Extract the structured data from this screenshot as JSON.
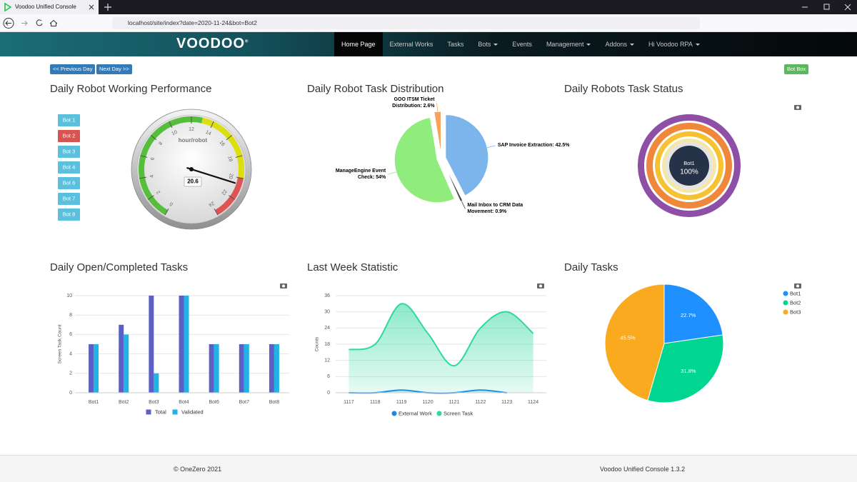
{
  "browser": {
    "tab_title": "Voodoo Unified Console",
    "url": "localhost/site/index?date=2020-11-24&bot=Bot2"
  },
  "nav": {
    "brand": "VOODOO",
    "brand_mark": "®",
    "items": [
      {
        "label": "Home Page",
        "active": true
      },
      {
        "label": "External Works"
      },
      {
        "label": "Tasks"
      },
      {
        "label": "Bots",
        "dropdown": true
      },
      {
        "label": "Events"
      },
      {
        "label": "Management",
        "dropdown": true
      },
      {
        "label": "Addons",
        "dropdown": true
      },
      {
        "label": "Hi Voodoo RPA",
        "dropdown": true
      }
    ]
  },
  "buttons": {
    "previous": "<< Previous Day",
    "next": "Next Day >>",
    "bot_box": "Bot Box"
  },
  "chart_data": [
    {
      "type": "gauge",
      "title": "Daily Robot Working Performance",
      "bots": [
        "Bot 1",
        "Bot 2",
        "Bot 3",
        "Bot 4",
        "Bot 6",
        "Bot 7",
        "Bot 8"
      ],
      "active_index": 1,
      "unit": "hour/robot",
      "value": 20.6,
      "ylim": [
        0,
        24
      ],
      "yticks": [
        0,
        2,
        4,
        6,
        8,
        10,
        12,
        14,
        16,
        18,
        20,
        22,
        24
      ],
      "bands": [
        {
          "from": 0,
          "to": 13,
          "color": "#55bf3b"
        },
        {
          "from": 13,
          "to": 20,
          "color": "#dddf0d"
        },
        {
          "from": 20,
          "to": 24,
          "color": "#df5353"
        }
      ]
    },
    {
      "type": "pie",
      "title": "Daily Robot Task Distribution",
      "sliced": true,
      "values": [
        42.5,
        0.9,
        54,
        2.6
      ],
      "value_labels": [
        "SAP Invoice Extraction: 42.5%",
        "Mail Inbox to CRM Data Movement: 0.9%",
        "ManageEngine Event Check: 54%",
        "GOO ITSM Ticket Distribution: 2.6%"
      ],
      "colors": [
        "#7cb5ec",
        "#434348",
        "#90ed7d",
        "#f7a35c"
      ]
    },
    {
      "type": "radial",
      "title": "Daily Robots Task Status",
      "categories": [
        "Bot1"
      ],
      "values": [
        100
      ],
      "value_labels": [
        "100%"
      ],
      "ylim": [
        0,
        100
      ],
      "color": "#8e4fa6"
    },
    {
      "type": "bar",
      "title": "Daily Open/Completed Tasks",
      "y_label": "Screen Task Count",
      "categories": [
        "Bot1",
        "Bot2",
        "Bot3",
        "Bot4",
        "Bot6",
        "Bot7",
        "Bot8"
      ],
      "series": [
        {
          "name": "Total",
          "color": "#5c5fc4",
          "values": [
            5,
            7,
            10,
            10,
            5,
            5,
            5
          ]
        },
        {
          "name": "Validated",
          "color": "#21b3e6",
          "values": [
            5,
            6,
            2,
            10,
            5,
            5,
            5
          ]
        }
      ],
      "ylim": [
        0,
        10
      ],
      "yticks": [
        0,
        2,
        4,
        6,
        8,
        10
      ],
      "grid": true
    },
    {
      "type": "area",
      "title": "Last Week Statistic",
      "y_label": "Counts",
      "categories": [
        "1117",
        "1118",
        "1119",
        "1120",
        "1121",
        "1122",
        "1123",
        "1124"
      ],
      "series": [
        {
          "name": "External Work",
          "color": "#1e88e5",
          "values": [
            0,
            0,
            1,
            0,
            0,
            1,
            0,
            null
          ]
        },
        {
          "name": "Screen Task",
          "color": "#2ed8a0",
          "values": [
            16,
            18,
            33,
            22,
            10,
            24,
            30,
            22
          ]
        }
      ],
      "ylim": [
        0,
        36
      ],
      "yticks": [
        0,
        6,
        12,
        18,
        24,
        30,
        36
      ],
      "grid": true
    },
    {
      "type": "pie",
      "title": "Daily Tasks",
      "categories": [
        "Bot1",
        "Bot2",
        "Bot3"
      ],
      "values": [
        22.7,
        31.8,
        45.5
      ],
      "value_labels": [
        "22.7%",
        "31.8%",
        "45.5%"
      ],
      "colors": [
        "#1e90ff",
        "#00d68f",
        "#f9aa1f"
      ],
      "legend": "top-right"
    }
  ],
  "footer": {
    "copyright": "© OneZero 2021",
    "version": "Voodoo Unified Console 1.3.2"
  }
}
